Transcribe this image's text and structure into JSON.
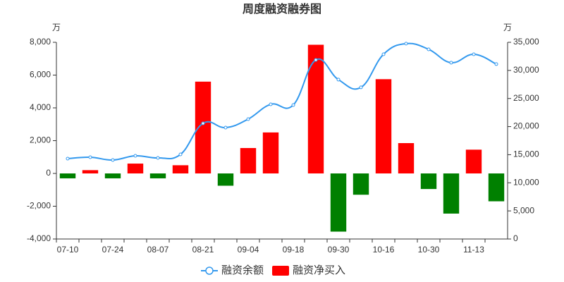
{
  "chart_data": {
    "type": "bar-line",
    "title": "周度融资融券图",
    "y_unit": "万",
    "y2_unit": "万",
    "categories": [
      "07-10",
      null,
      "07-24",
      null,
      "08-07",
      null,
      "08-21",
      null,
      "09-04",
      null,
      "09-18",
      null,
      "09-30",
      null,
      "10-16",
      null,
      "10-30",
      null,
      "11-13",
      null
    ],
    "series": [
      {
        "name": "融资余额",
        "type": "line",
        "axis": "y2",
        "color": "#3399ee",
        "values": [
          14300,
          14550,
          14050,
          14800,
          14430,
          15050,
          20580,
          19820,
          21330,
          23960,
          23840,
          31870,
          28360,
          26980,
          32870,
          34760,
          33750,
          31370,
          32870,
          31120
        ]
      },
      {
        "name": "融资净买入",
        "type": "bar",
        "color": "#ff0000",
        "negative_color": "#008000",
        "values": [
          -300,
          200,
          -300,
          600,
          -300,
          500,
          5600,
          -750,
          1550,
          2500,
          0,
          7850,
          -3550,
          -1300,
          5750,
          1850,
          -950,
          -2450,
          1450,
          -1700
        ]
      }
    ],
    "ylim": [
      -4000,
      8000
    ],
    "yticks": [
      {
        "value": -4000,
        "label": "-4,000"
      },
      {
        "value": -2000,
        "label": "-2,000"
      },
      0,
      {
        "value": 2000,
        "label": "2,000"
      },
      {
        "value": 4000,
        "label": "4,000"
      },
      {
        "value": 6000,
        "label": "6,000"
      },
      {
        "value": 8000,
        "label": "8,000"
      }
    ],
    "y2lim": [
      0,
      35000
    ],
    "y2ticks": [
      0,
      {
        "value": 5000,
        "label": "5,000"
      },
      {
        "value": 10000,
        "label": "10,000"
      },
      {
        "value": 15000,
        "label": "15,000"
      },
      {
        "value": 20000,
        "label": "20,000"
      },
      {
        "value": 25000,
        "label": "25,000"
      },
      {
        "value": 30000,
        "label": "30,000"
      },
      {
        "value": 35000,
        "label": "35,000"
      }
    ]
  }
}
